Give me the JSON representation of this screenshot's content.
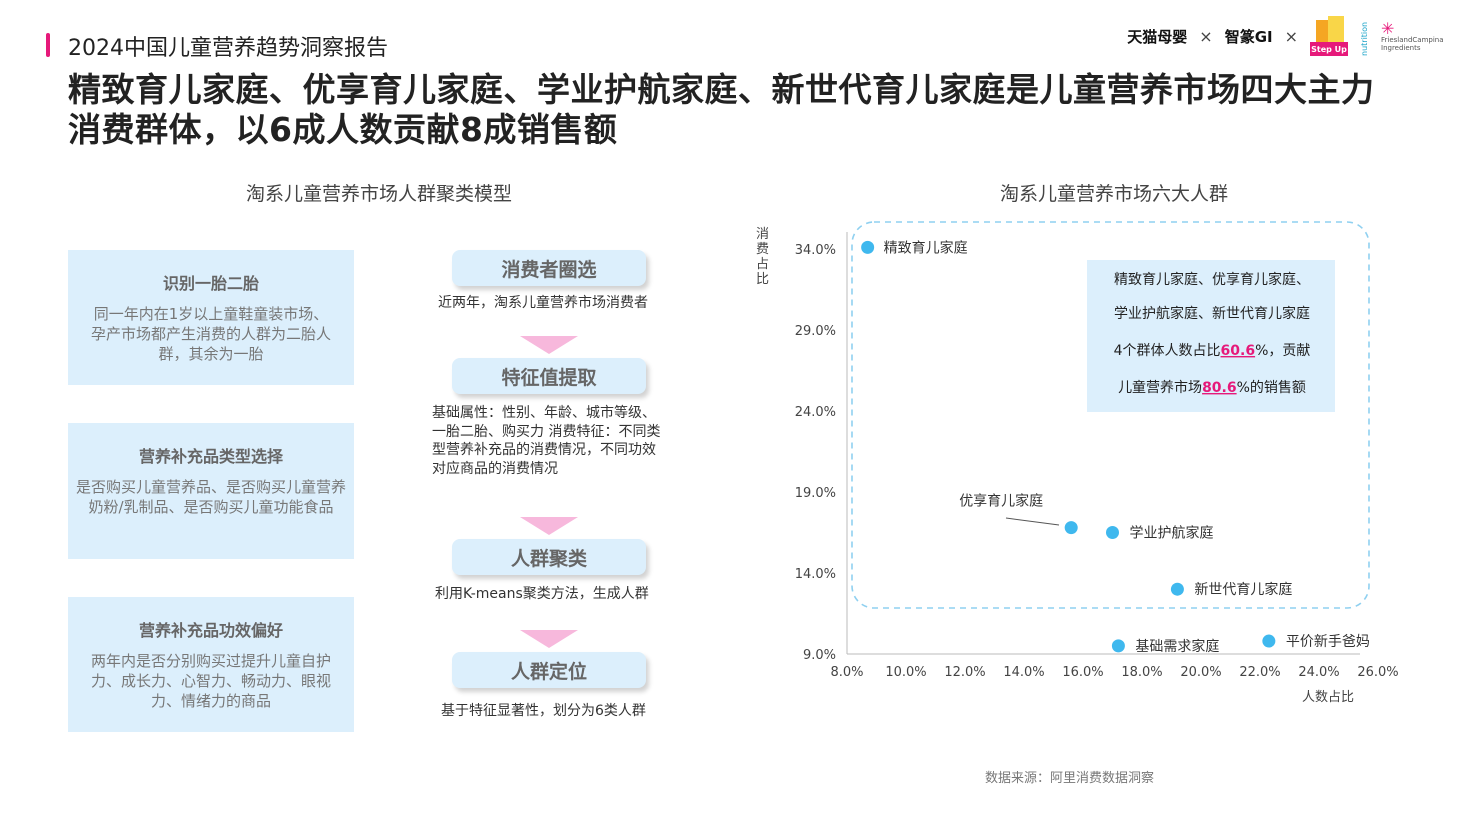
{
  "header": {
    "report_title": "2024中国儿童营养趋势洞察报告",
    "logos": {
      "tmall": "天猫母婴",
      "sep1": "×",
      "gi": "智篆GI",
      "sep2": "×",
      "stepup": "Step Up",
      "nutrition": "nutrition",
      "fc": "FrieslandCampina Ingredients"
    },
    "accent_color": "#e6197a"
  },
  "headline": "精致育儿家庭、优享育儿家庭、学业护航家庭、新世代育儿家庭是儿童营养市场四大主力消费群体，以6成人数贡献8成销售额",
  "left": {
    "title": "淘系儿童营养市场人群聚类模型",
    "cards": [
      {
        "title": "识别一胎二胎",
        "desc": "同一年内在1岁以上童鞋童装市场、孕产市场都产生消费的人群为二胎人群，其余为一胎"
      },
      {
        "title": "营养补充品类型选择",
        "desc": "是否购买儿童营养品、是否购买儿童营养奶粉/乳制品、是否购买儿童功能食品"
      },
      {
        "title": "营养补充品功效偏好",
        "desc": "两年内是否分别购买过提升儿童自护力、成长力、心智力、畅动力、眼视力、情绪力的商品"
      }
    ],
    "steps": [
      {
        "label": "消费者圈选",
        "desc": "近两年，淘系儿童营养市场消费者"
      },
      {
        "label": "特征值提取",
        "desc": "基础属性：性别、年龄、城市等级、一胎二胎、购买力 消费特征：不同类型营养补充品的消费情况，不同功效对应商品的消费情况"
      },
      {
        "label": "人群聚类",
        "desc": "利用K-means聚类方法，生成人群"
      },
      {
        "label": "人群定位",
        "desc": "基于特征显著性，划分为6类人群"
      }
    ]
  },
  "chart_data": {
    "type": "scatter",
    "title": "淘系儿童营养市场六大人群",
    "xlabel": "人数占比",
    "ylabel": "消费占比",
    "xlim": [
      8.0,
      26.0
    ],
    "ylim": [
      9.0,
      34.0
    ],
    "x_ticks": [
      "8.0%",
      "10.0%",
      "12.0%",
      "14.0%",
      "16.0%",
      "18.0%",
      "20.0%",
      "22.0%",
      "24.0%",
      "26.0%"
    ],
    "y_ticks": [
      "9.0%",
      "14.0%",
      "19.0%",
      "24.0%",
      "29.0%",
      "34.0%"
    ],
    "points": [
      {
        "name": "精致育儿家庭",
        "x": 8.7,
        "y": 34.1
      },
      {
        "name": "优享育儿家庭",
        "x": 15.6,
        "y": 16.8
      },
      {
        "name": "学业护航家庭",
        "x": 17.0,
        "y": 16.5
      },
      {
        "name": "新世代育儿家庭",
        "x": 19.2,
        "y": 13.0
      },
      {
        "name": "基础需求家庭",
        "x": 17.2,
        "y": 9.5
      },
      {
        "name": "平价新手爸妈",
        "x": 22.3,
        "y": 9.8
      }
    ],
    "point_color": "#3fb8ee",
    "annotation": {
      "lines": [
        "精致育儿家庭、优享育儿家庭、",
        "学业护航家庭、新世代育儿家庭"
      ],
      "line3_pre": "4个群体人数占比",
      "line3_val": "60.6",
      "line3_post": "%，贡献",
      "line4_pre": "儿童营养市场",
      "line4_val": "80.6",
      "line4_post": "%的销售额",
      "highlight_color": "#e6197a"
    },
    "grid": false
  },
  "source": "数据来源：阿里消费数据洞察"
}
